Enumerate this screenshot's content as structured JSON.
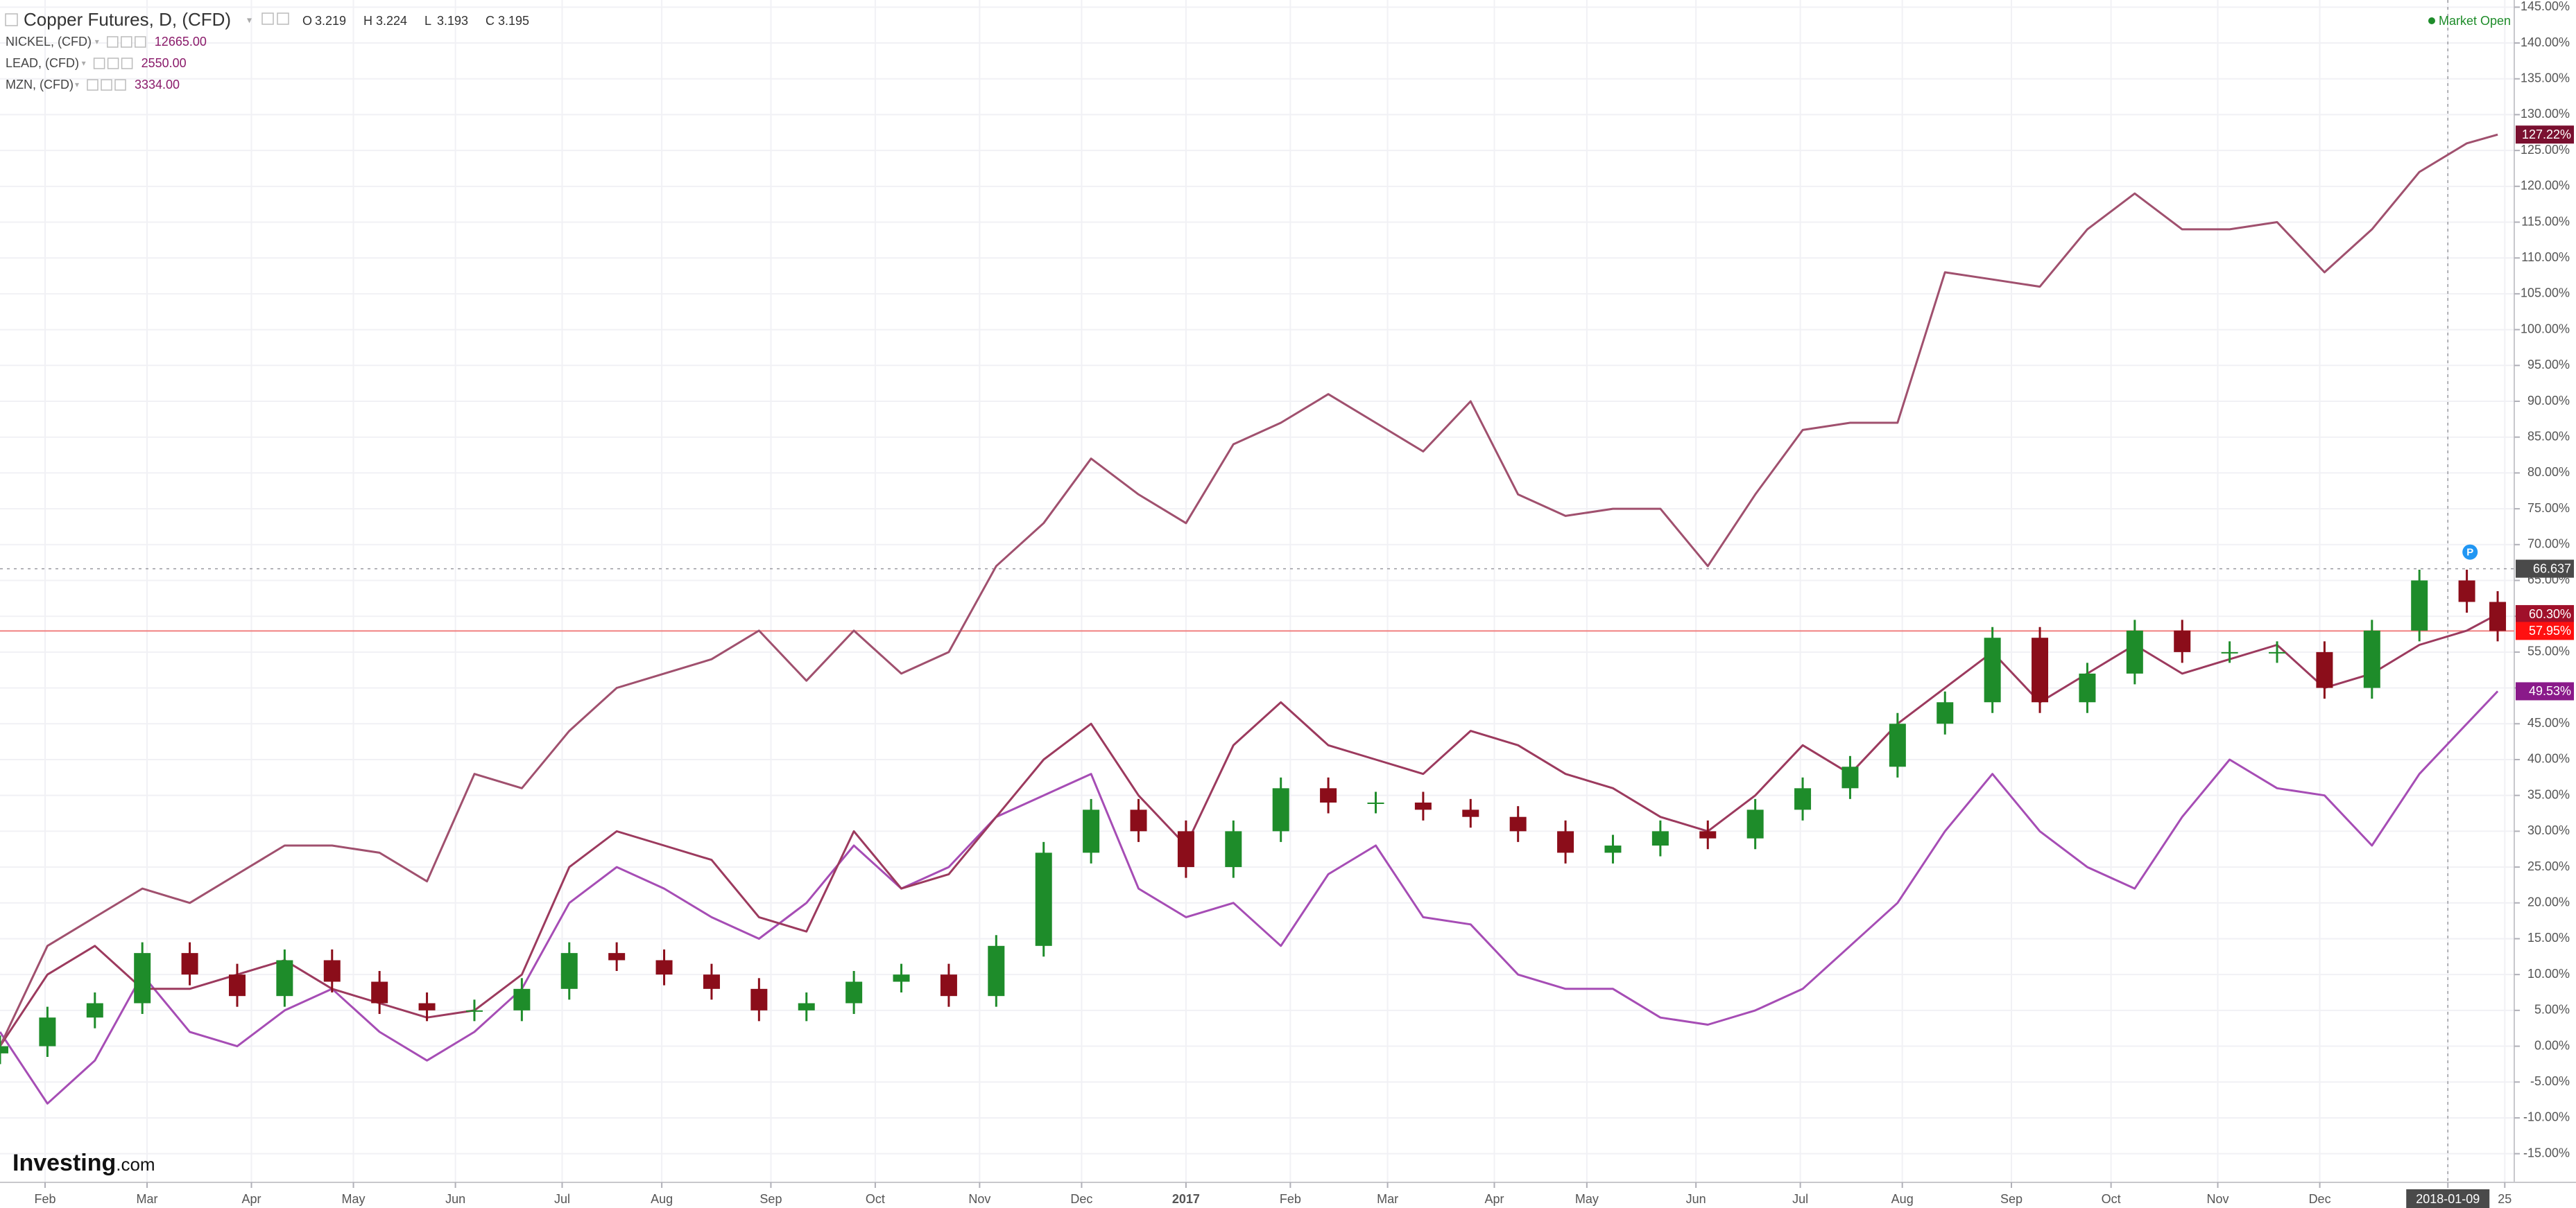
{
  "chart_data": {
    "type": "candlestick",
    "title": "Copper Futures, D, (CFD)",
    "ohlc_header": [
      {
        "key": "O",
        "value": 3.219
      },
      {
        "key": "H",
        "value": 3.224
      },
      {
        "key": "L",
        "value": 3.193
      },
      {
        "key": "C",
        "value": 3.195
      }
    ],
    "status": "Market Open",
    "brand": "Investing",
    "brand_suffix": ".com",
    "x": [
      0,
      2,
      4,
      6,
      8,
      10,
      12,
      14,
      16,
      18,
      20,
      22,
      24,
      26,
      28,
      30,
      32,
      34,
      36,
      38,
      40,
      42,
      44,
      46,
      48,
      50,
      52,
      54,
      56,
      58,
      60,
      62,
      64,
      66,
      68,
      70,
      72,
      74,
      76,
      78,
      80,
      82,
      84,
      86,
      88,
      90,
      92,
      94,
      96,
      98,
      100,
      102,
      104,
      105.3
    ],
    "candles": {
      "color_up": "#1e8c2a",
      "color_down": "#8b0d1a",
      "last_label": "57.95%",
      "label_color": "#ff1010",
      "open": [
        -1,
        0,
        4,
        6,
        13,
        10,
        7,
        12,
        9,
        6,
        5,
        5,
        8,
        13,
        12,
        10,
        8,
        5,
        6,
        9,
        10,
        7,
        14,
        27,
        33,
        30,
        25,
        30,
        36,
        34,
        34,
        33,
        32,
        30,
        27,
        28,
        30,
        29,
        33,
        36,
        39,
        45,
        48,
        57,
        48,
        52,
        58,
        55,
        55,
        55,
        50,
        58,
        65,
        62
      ],
      "high": [
        1.5,
        5.5,
        7.5,
        14.5,
        14.5,
        11.5,
        13.5,
        13.5,
        10.5,
        7.5,
        6.5,
        9.5,
        14.5,
        14.5,
        13.5,
        11.5,
        9.5,
        7.5,
        10.5,
        11.5,
        11.5,
        15.5,
        28.5,
        34.5,
        34.5,
        31.5,
        31.5,
        37.5,
        37.5,
        35.5,
        35.5,
        34.5,
        33.5,
        31.5,
        29.5,
        31.5,
        31.5,
        34.5,
        37.5,
        40.5,
        46.5,
        49.5,
        58.5,
        58.5,
        53.5,
        59.5,
        59.5,
        56.5,
        56.5,
        56.5,
        59.5,
        66.5,
        66.5,
        63.5
      ],
      "low": [
        -2.5,
        -1.5,
        2.5,
        4.5,
        8.5,
        5.5,
        5.5,
        7.5,
        4.5,
        3.5,
        3.5,
        3.5,
        6.5,
        10.5,
        8.5,
        6.5,
        3.5,
        3.5,
        4.5,
        7.5,
        5.5,
        5.5,
        12.5,
        25.5,
        28.5,
        23.5,
        23.5,
        28.5,
        32.5,
        32.5,
        31.5,
        30.5,
        28.5,
        25.5,
        25.5,
        26.5,
        27.5,
        27.5,
        31.5,
        34.5,
        37.5,
        43.5,
        46.5,
        46.5,
        46.5,
        50.5,
        53.5,
        53.5,
        53.5,
        48.5,
        48.5,
        56.5,
        60.5,
        56.5
      ],
      "close": [
        0,
        4,
        6,
        13,
        10,
        7,
        12,
        9,
        6,
        5,
        5,
        8,
        13,
        12,
        10,
        8,
        5,
        6,
        9,
        10,
        7,
        14,
        27,
        33,
        30,
        25,
        30,
        36,
        34,
        34,
        33,
        32,
        30,
        27,
        28,
        30,
        29,
        33,
        36,
        39,
        45,
        48,
        57,
        48,
        52,
        58,
        55,
        55,
        55,
        50,
        58,
        65,
        62,
        57.95
      ]
    },
    "series": [
      {
        "name": "NICKEL, (CFD)",
        "header_value": {
          "value": 12665,
          "label": "12665.00"
        },
        "color": "#a64db5",
        "label_color": "#8a1a8a",
        "last_label": "49.53%",
        "values": [
          2,
          -8,
          -2,
          10,
          2,
          0,
          5,
          8,
          2,
          -2,
          2,
          8,
          20,
          25,
          22,
          18,
          15,
          20,
          28,
          22,
          25,
          32,
          35,
          38,
          22,
          18,
          20,
          14,
          24,
          28,
          18,
          17,
          10,
          8,
          8,
          4,
          3,
          5,
          8,
          14,
          20,
          30,
          38,
          30,
          25,
          22,
          32,
          40,
          36,
          35,
          28,
          38,
          45,
          49.53
        ]
      },
      {
        "name": "LEAD, (CFD)",
        "header_value": {
          "value": 2550,
          "label": "2550.00"
        },
        "color": "#9c3a5e",
        "label_color": "#a0102a",
        "last_label": "60.30%",
        "values": [
          0,
          10,
          14,
          8,
          8,
          10,
          12,
          8,
          6,
          4,
          5,
          10,
          25,
          30,
          28,
          26,
          18,
          16,
          30,
          22,
          24,
          32,
          40,
          45,
          35,
          28,
          42,
          48,
          42,
          40,
          38,
          44,
          42,
          38,
          36,
          32,
          30,
          35,
          42,
          38,
          45,
          50,
          55,
          48,
          52,
          56,
          52,
          54,
          56,
          50,
          52,
          56,
          58,
          60.3
        ]
      },
      {
        "name": "MZN, (CFD)",
        "header_value": {
          "value": 3334,
          "label": "3334.00"
        },
        "color": "#a0506e",
        "label_color": "#7a1030",
        "last_label": "127.22%",
        "values": [
          0,
          14,
          18,
          22,
          20,
          24,
          28,
          28,
          27,
          23,
          38,
          36,
          44,
          50,
          52,
          54,
          58,
          51,
          58,
          52,
          55,
          67,
          73,
          82,
          77,
          73,
          84,
          87,
          91,
          87,
          83,
          90,
          77,
          74,
          75,
          75,
          67,
          77,
          86,
          87,
          87,
          108,
          107,
          106,
          114,
          119,
          114,
          114,
          115,
          108,
          114,
          122,
          126,
          127.22
        ]
      }
    ],
    "crosshair": {
      "value": 66.637,
      "label": "66.637"
    },
    "marker": "P",
    "xlim": [
      0,
      106
    ],
    "xticks": [
      {
        "value": 1.9,
        "label": "Feb"
      },
      {
        "value": 6.2,
        "label": "Mar"
      },
      {
        "value": 10.6,
        "label": "Apr"
      },
      {
        "value": 14.9,
        "label": "May"
      },
      {
        "value": 19.2,
        "label": "Jun"
      },
      {
        "value": 23.7,
        "label": "Jul"
      },
      {
        "value": 27.9,
        "label": "Aug"
      },
      {
        "value": 32.5,
        "label": "Sep"
      },
      {
        "value": 36.9,
        "label": "Oct"
      },
      {
        "value": 41.3,
        "label": "Nov"
      },
      {
        "value": 45.6,
        "label": "Dec"
      },
      {
        "value": 50,
        "label": "2017"
      },
      {
        "value": 54.4,
        "label": "Feb"
      },
      {
        "value": 58.5,
        "label": "Mar"
      },
      {
        "value": 63,
        "label": "Apr"
      },
      {
        "value": 66.9,
        "label": "May"
      },
      {
        "value": 71.5,
        "label": "Jun"
      },
      {
        "value": 75.9,
        "label": "Jul"
      },
      {
        "value": 80.2,
        "label": "Aug"
      },
      {
        "value": 84.8,
        "label": "Sep"
      },
      {
        "value": 89,
        "label": "Oct"
      },
      {
        "value": 93.5,
        "label": "Nov"
      },
      {
        "value": 97.8,
        "label": "Dec"
      },
      {
        "value": 103.2,
        "label": "2018-01-09"
      },
      {
        "value": 105.6,
        "label": "25"
      }
    ],
    "cursor_tick": 23,
    "ylim": [
      -19,
      146
    ],
    "yticks": [
      {
        "value": -15,
        "label": "-15.00%"
      },
      {
        "value": -10,
        "label": "-10.00%"
      },
      {
        "value": -5,
        "label": "-5.00%"
      },
      {
        "value": 0,
        "label": "0.00%"
      },
      {
        "value": 5,
        "label": "5.00%"
      },
      {
        "value": 10,
        "label": "10.00%"
      },
      {
        "value": 15,
        "label": "15.00%"
      },
      {
        "value": 20,
        "label": "20.00%"
      },
      {
        "value": 25,
        "label": "25.00%"
      },
      {
        "value": 30,
        "label": "30.00%"
      },
      {
        "value": 35,
        "label": "35.00%"
      },
      {
        "value": 40,
        "label": "40.00%"
      },
      {
        "value": 45,
        "label": "45.00%"
      },
      {
        "value": 50,
        "label": "50.00%"
      },
      {
        "value": 55,
        "label": "55.00%"
      },
      {
        "value": 60,
        "label": "60.00%"
      },
      {
        "value": 65,
        "label": "65.00%"
      },
      {
        "value": 70,
        "label": "70.00%"
      },
      {
        "value": 75,
        "label": "75.00%"
      },
      {
        "value": 80,
        "label": "80.00%"
      },
      {
        "value": 85,
        "label": "85.00%"
      },
      {
        "value": 90,
        "label": "90.00%"
      },
      {
        "value": 95,
        "label": "95.00%"
      },
      {
        "value": 100,
        "label": "100.00%"
      },
      {
        "value": 105,
        "label": "105.00%"
      },
      {
        "value": 110,
        "label": "110.00%"
      },
      {
        "value": 115,
        "label": "115.00%"
      },
      {
        "value": 120,
        "label": "120.00%"
      },
      {
        "value": 125,
        "label": "125.00%"
      },
      {
        "value": 130,
        "label": "130.00%"
      },
      {
        "value": 135,
        "label": "135.00%"
      },
      {
        "value": 140,
        "label": "140.00%"
      },
      {
        "value": 145,
        "label": "145.00%"
      }
    ],
    "grid": true
  }
}
